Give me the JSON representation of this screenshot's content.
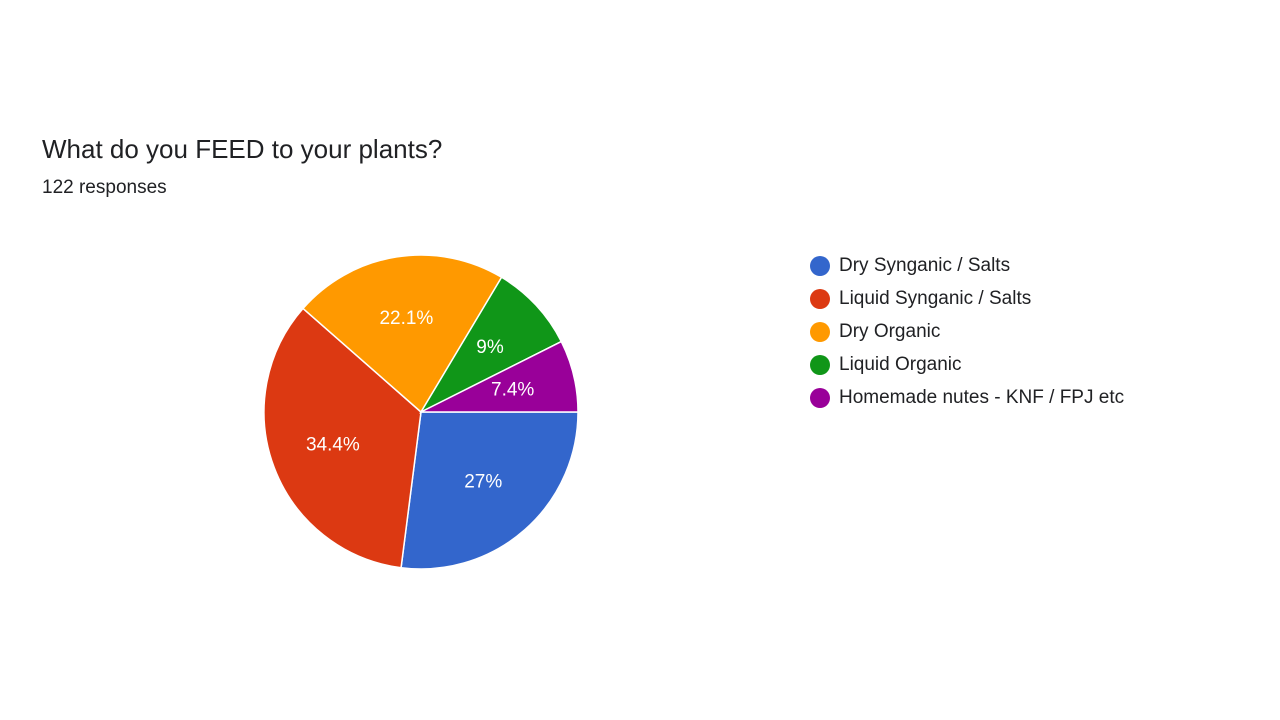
{
  "chart_data": {
    "type": "pie",
    "title": "What do you FEED to your plants?",
    "subtitle": "122 responses",
    "categories": [
      "Dry Synganic / Salts",
      "Liquid Synganic / Salts",
      "Dry Organic",
      "Liquid Organic",
      "Homemade nutes - KNF / FPJ etc"
    ],
    "values": [
      27,
      34.4,
      22.1,
      9,
      7.4
    ],
    "value_labels": [
      "27%",
      "34.4%",
      "22.1%",
      "9%",
      "7.4%"
    ],
    "colors": [
      "#3366cc",
      "#dc3912",
      "#ff9900",
      "#109618",
      "#990099"
    ],
    "legend": "right"
  }
}
